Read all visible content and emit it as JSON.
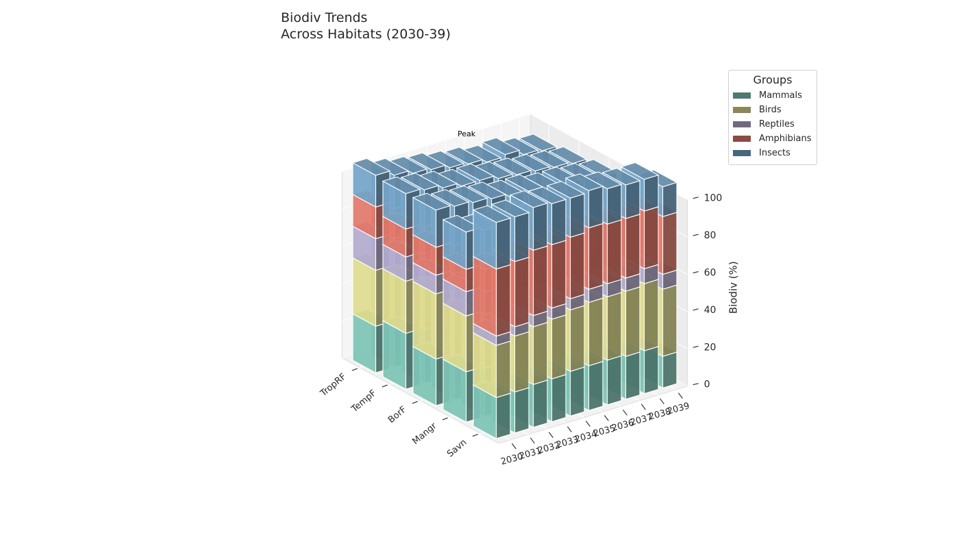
{
  "chart_data": {
    "type": "bar",
    "subtype": "3d-stacked-bar",
    "title": "Biodiv Trends\nAcross Habitats (2030-39)",
    "xlabel": "",
    "ylabel": "",
    "zlabel": "Biodiv (%)",
    "zlim": [
      0,
      100
    ],
    "z_ticks": [
      0,
      20,
      40,
      60,
      80,
      100
    ],
    "grid": true,
    "legend_title": "Groups",
    "legend_position": "top-right",
    "habitats": [
      "TropRF",
      "TempF",
      "BorF",
      "Mangr",
      "Savn"
    ],
    "years": [
      "2030",
      "2031",
      "2032",
      "2033",
      "2034",
      "2035",
      "2036",
      "2037",
      "2038",
      "2039"
    ],
    "annotation": "Peak",
    "series": [
      {
        "name": "Mammals",
        "color": "#7dc4b5",
        "values": [
          [
            25,
            24,
            23,
            22,
            21,
            21,
            20,
            20,
            19,
            18
          ],
          [
            30,
            29,
            28,
            27,
            26,
            26,
            25,
            24,
            24,
            23
          ],
          [
            25,
            24,
            24,
            23,
            22,
            22,
            21,
            21,
            20,
            20
          ],
          [
            27,
            26,
            25,
            24,
            24,
            23,
            22,
            22,
            21,
            21
          ],
          [
            22,
            22,
            23,
            23,
            24,
            24,
            24,
            23,
            23,
            17
          ]
        ]
      },
      {
        "name": "Birds",
        "color": "#dedc8f",
        "values": [
          [
            30,
            29,
            28,
            27,
            26,
            25,
            24,
            23,
            22,
            21
          ],
          [
            28,
            28,
            27,
            26,
            26,
            25,
            24,
            24,
            23,
            22
          ],
          [
            35,
            34,
            33,
            33,
            32,
            31,
            30,
            30,
            29,
            28
          ],
          [
            30,
            29,
            29,
            28,
            27,
            26,
            26,
            25,
            24,
            24
          ],
          [
            28,
            30,
            31,
            32,
            33,
            34,
            34,
            35,
            36,
            36
          ]
        ]
      },
      {
        "name": "Reptiles",
        "color": "#b3abcf",
        "values": [
          [
            17,
            16,
            16,
            15,
            15,
            14,
            14,
            14,
            13,
            13
          ],
          [
            13,
            13,
            12,
            12,
            12,
            11,
            11,
            11,
            10,
            10
          ],
          [
            10,
            10,
            10,
            9,
            9,
            9,
            9,
            8,
            8,
            8
          ],
          [
            13,
            12,
            12,
            11,
            11,
            11,
            10,
            10,
            10,
            9
          ],
          [
            5,
            5,
            6,
            6,
            6,
            7,
            7,
            7,
            8,
            8
          ]
        ]
      },
      {
        "name": "Amphibians",
        "color": "#e2786a",
        "values": [
          [
            17,
            16,
            15,
            15,
            14,
            14,
            13,
            13,
            12,
            12
          ],
          [
            15,
            14,
            14,
            13,
            13,
            12,
            12,
            11,
            11,
            11
          ],
          [
            15,
            15,
            14,
            14,
            13,
            13,
            12,
            12,
            12,
            11
          ],
          [
            12,
            12,
            11,
            11,
            11,
            10,
            10,
            10,
            9,
            9
          ],
          [
            36,
            35,
            35,
            34,
            33,
            33,
            32,
            32,
            31,
            31
          ]
        ]
      },
      {
        "name": "Insects",
        "color": "#74a5c8",
        "values": [
          [
            17,
            18,
            19,
            21,
            22,
            23,
            24,
            26,
            27,
            28
          ],
          [
            19,
            20,
            21,
            22,
            23,
            24,
            25,
            26,
            27,
            28
          ],
          [
            20,
            21,
            22,
            23,
            24,
            25,
            26,
            27,
            28,
            29
          ],
          [
            20,
            21,
            22,
            23,
            24,
            25,
            26,
            27,
            28,
            29
          ],
          [
            25,
            24,
            23,
            22,
            21,
            20,
            19,
            18,
            17,
            16
          ]
        ]
      }
    ]
  }
}
